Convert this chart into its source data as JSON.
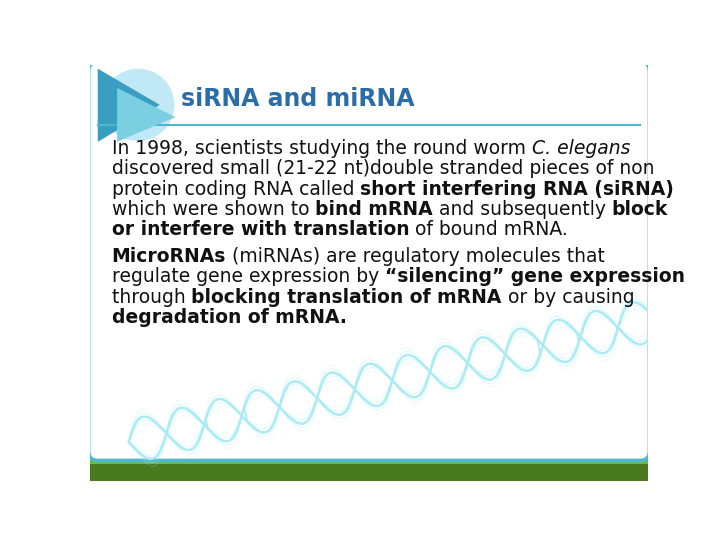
{
  "title": "siRNA and miRNA",
  "title_color": "#2B6DA8",
  "background_color": "#FFFFFF",
  "border_color": "#4DB8CC",
  "bottom_bar_dark": "#4A7A1E",
  "bottom_bar_light": "#7AB82A",
  "dna_color": "#AAECF5",
  "triangle_dark": "#3A9EC0",
  "triangle_light": "#7ACFE0",
  "circle_color": "#C0E8F5",
  "text_color": "#1a1a1a",
  "font_size": 13.5,
  "title_font_size": 17,
  "p1_parts": [
    [
      {
        "t": "In 1998, scientists studying the round worm ",
        "b": false,
        "i": false
      },
      {
        "t": "C. elegans",
        "b": false,
        "i": true
      }
    ],
    [
      {
        "t": "discovered small (21-22 nt)double stranded pieces of non",
        "b": false,
        "i": false
      }
    ],
    [
      {
        "t": "protein coding RNA called ",
        "b": false,
        "i": false
      },
      {
        "t": "short interfering RNA (siRNA)",
        "b": true,
        "i": false
      }
    ],
    [
      {
        "t": "which were shown to ",
        "b": false,
        "i": false
      },
      {
        "t": "bind mRNA",
        "b": true,
        "i": false
      },
      {
        "t": " and subsequently ",
        "b": false,
        "i": false
      },
      {
        "t": "block",
        "b": true,
        "i": false
      }
    ],
    [
      {
        "t": "or interfere with translation",
        "b": true,
        "i": false
      },
      {
        "t": " of bound mRNA.",
        "b": false,
        "i": false
      }
    ]
  ],
  "p2_parts": [
    [
      {
        "t": "MicroRNAs",
        "b": true,
        "i": false
      },
      {
        "t": " (miRNAs) are regulatory molecules that",
        "b": false,
        "i": false
      }
    ],
    [
      {
        "t": "regulate gene expression by ",
        "b": false,
        "i": false
      },
      {
        "t": "“silencing” gene expression",
        "b": true,
        "i": false
      }
    ],
    [
      {
        "t": "through ",
        "b": false,
        "i": false
      },
      {
        "t": "blocking translation of mRNA",
        "b": true,
        "i": false
      },
      {
        "t": " or by causing",
        "b": false,
        "i": false
      }
    ],
    [
      {
        "t": "degradation of mRNA.",
        "b": true,
        "i": false
      }
    ]
  ]
}
